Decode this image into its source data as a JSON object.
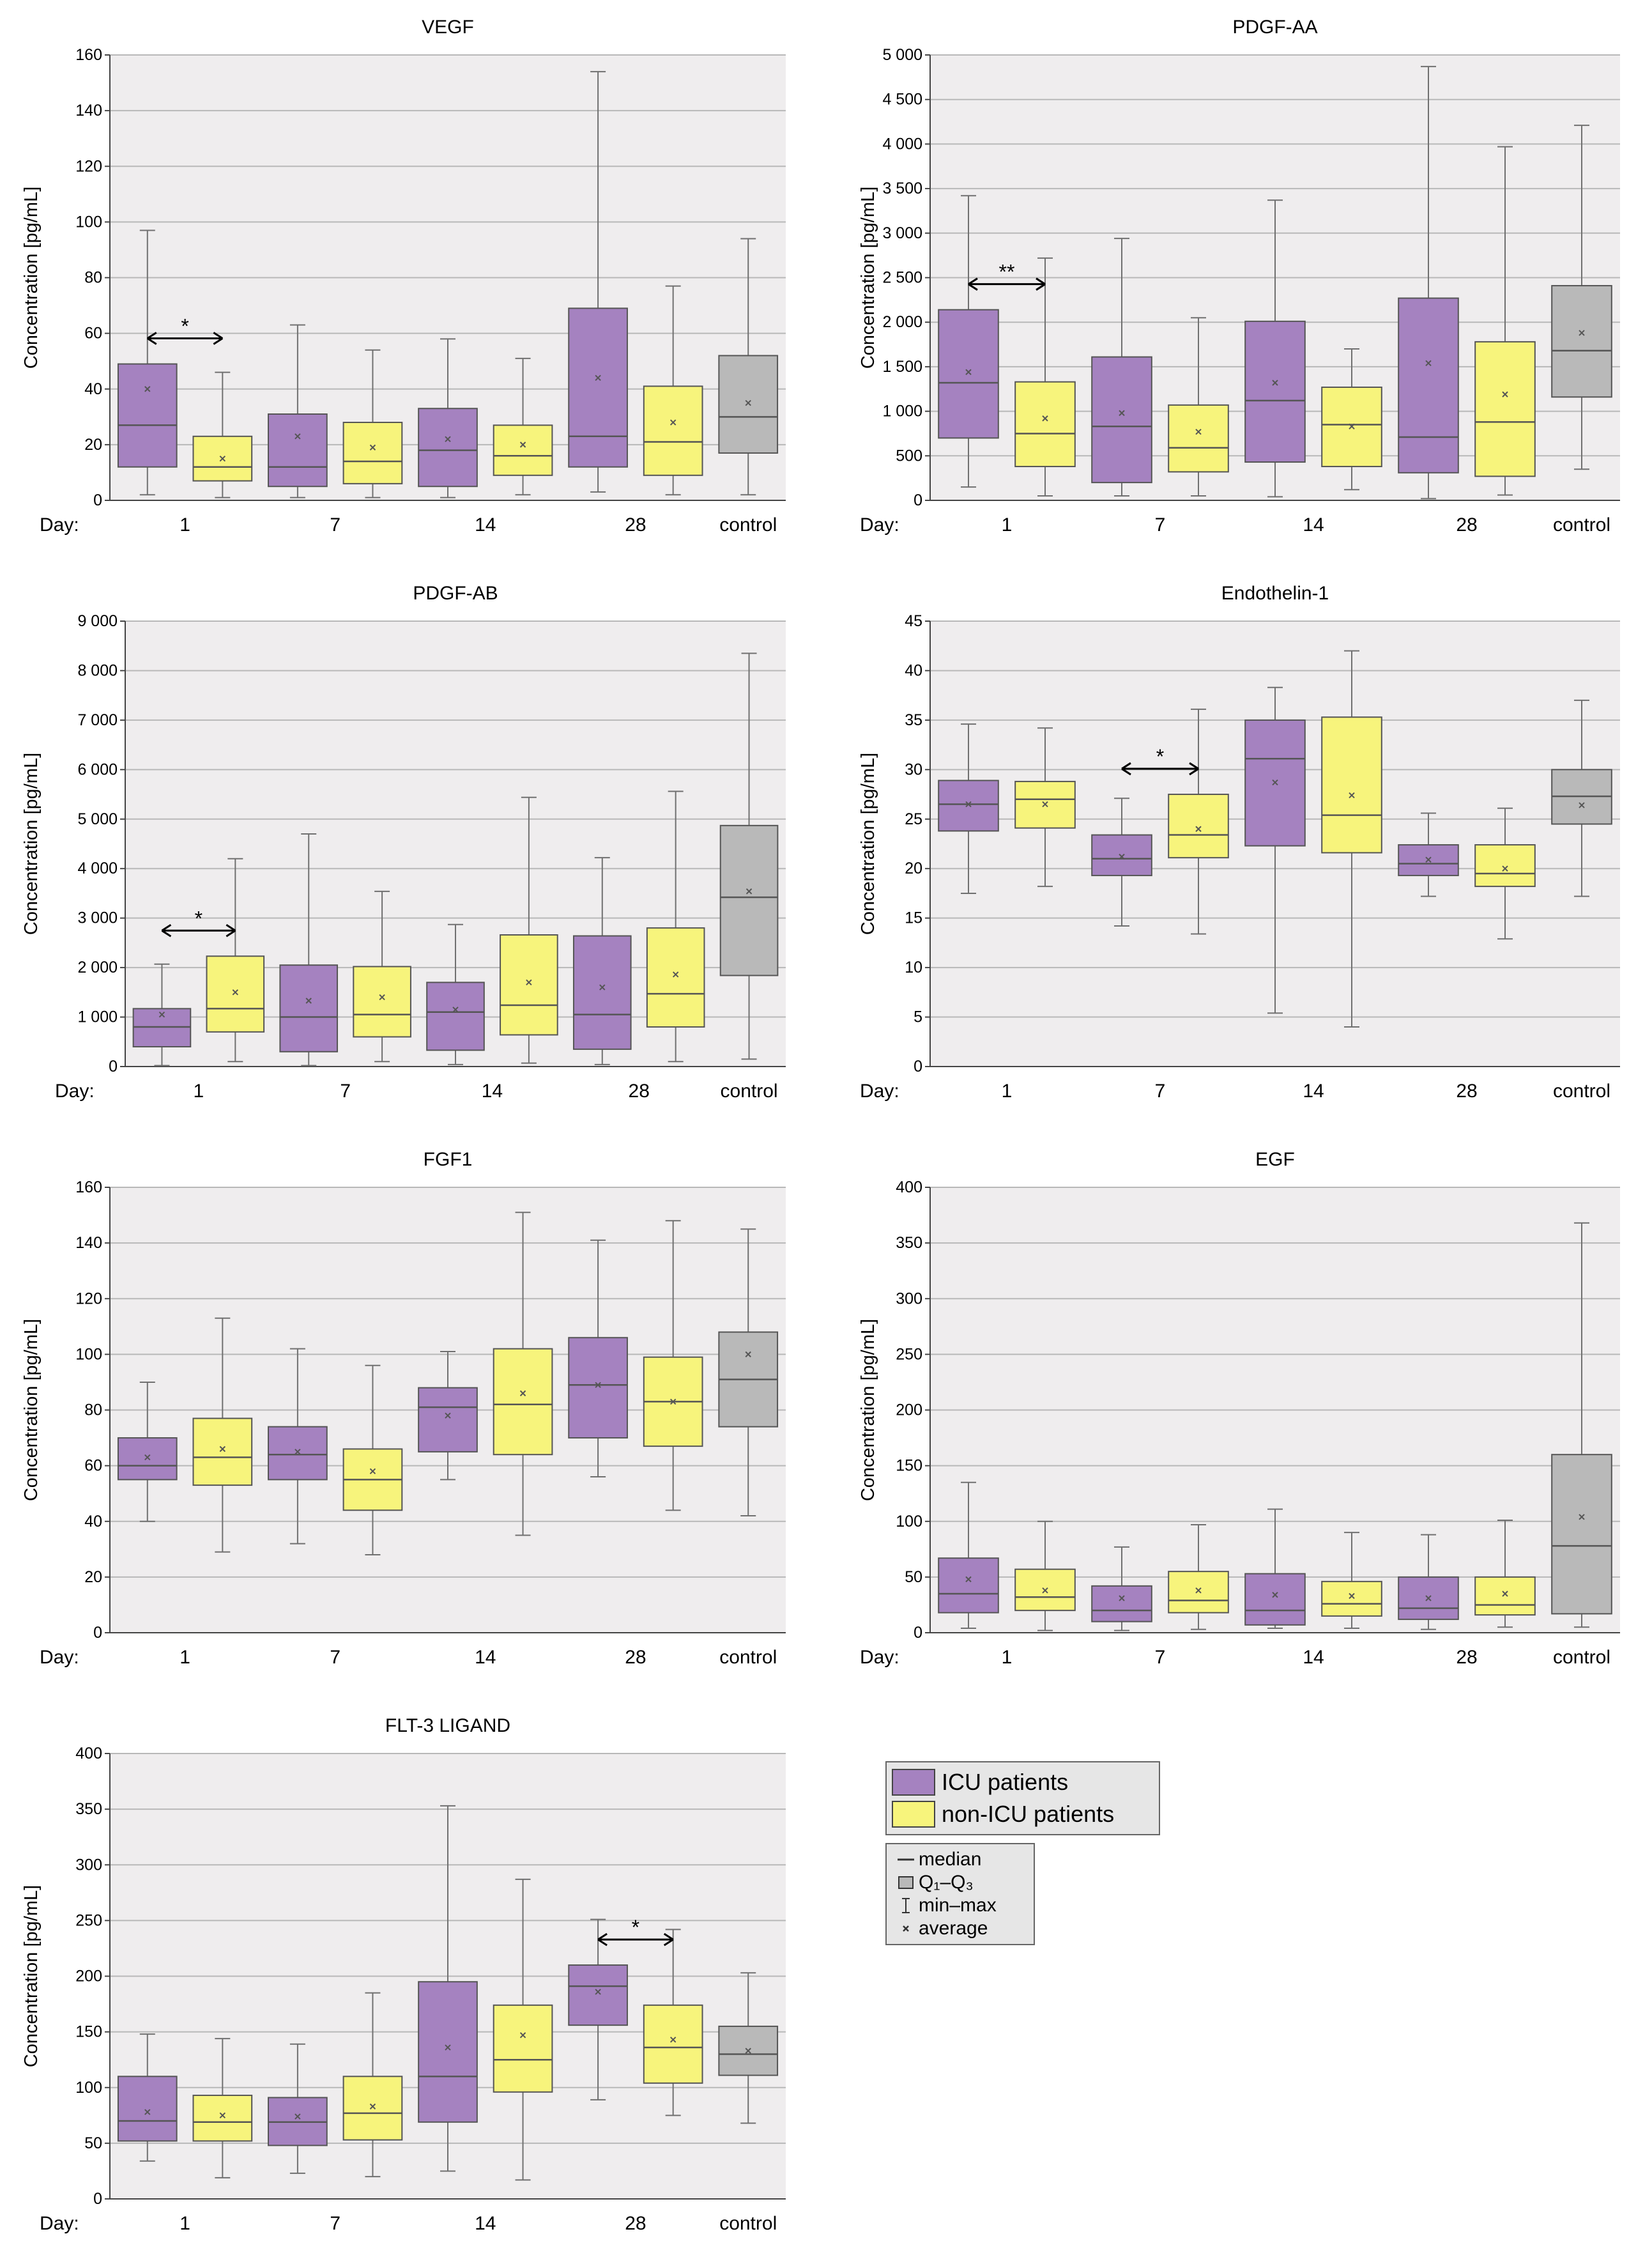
{
  "colors": {
    "icu": "#a582c0",
    "nonicu": "#f7f47c",
    "control": "#b9b9b9",
    "plot_bg": "#efedee",
    "grid": "#b8b8b8",
    "whisker": "#707070"
  },
  "legend": {
    "groups": [
      {
        "label": "ICU patients",
        "color": "#a582c0"
      },
      {
        "label": "non-ICU patients",
        "color": "#f7f47c"
      }
    ],
    "keys": [
      {
        "icon": "median-line-icon",
        "label": "median"
      },
      {
        "icon": "box-icon",
        "label": "Q₁–Q₃"
      },
      {
        "icon": "whisker-icon",
        "label": "min–max"
      },
      {
        "icon": "average-marker-icon",
        "label": "average"
      }
    ]
  },
  "chart_data": [
    {
      "type": "boxplot",
      "title": "VEGF",
      "ylabel": "Concentration [pg/mL]",
      "xlabel": "Day:",
      "ylim": [
        0,
        160
      ],
      "yticks": [
        0,
        20,
        40,
        60,
        80,
        100,
        120,
        140,
        160
      ],
      "day_labels": [
        "1",
        "7",
        "14",
        "28",
        "control"
      ],
      "boxes": [
        {
          "group": "ICU",
          "day": "1",
          "min": 2,
          "q1": 12,
          "median": 27,
          "q3": 49,
          "max": 97,
          "mean": 40
        },
        {
          "group": "non-ICU",
          "day": "1",
          "min": 1,
          "q1": 7,
          "median": 12,
          "q3": 23,
          "max": 46,
          "mean": 15
        },
        {
          "group": "ICU",
          "day": "7",
          "min": 1,
          "q1": 5,
          "median": 12,
          "q3": 31,
          "max": 63,
          "mean": 23
        },
        {
          "group": "non-ICU",
          "day": "7",
          "min": 1,
          "q1": 6,
          "median": 14,
          "q3": 28,
          "max": 54,
          "mean": 19
        },
        {
          "group": "ICU",
          "day": "14",
          "min": 1,
          "q1": 5,
          "median": 18,
          "q3": 33,
          "max": 58,
          "mean": 22
        },
        {
          "group": "non-ICU",
          "day": "14",
          "min": 2,
          "q1": 9,
          "median": 16,
          "q3": 27,
          "max": 51,
          "mean": 20
        },
        {
          "group": "ICU",
          "day": "28",
          "min": 3,
          "q1": 12,
          "median": 23,
          "q3": 69,
          "max": 154,
          "mean": 44
        },
        {
          "group": "non-ICU",
          "day": "28",
          "min": 2,
          "q1": 9,
          "median": 21,
          "q3": 41,
          "max": 77,
          "mean": 28
        },
        {
          "group": "control",
          "day": "control",
          "min": 2,
          "q1": 17,
          "median": 30,
          "q3": 52,
          "max": 94,
          "mean": 35
        }
      ],
      "significance": [
        {
          "between": [
            "ICU 1",
            "non-ICU 1"
          ],
          "label": "*"
        }
      ]
    },
    {
      "type": "boxplot",
      "title": "PDGF-AA",
      "ylabel": "Concentration [pg/mL]",
      "xlabel": "Day:",
      "ylim": [
        0,
        5000
      ],
      "yticks": [
        0,
        500,
        1000,
        1500,
        2000,
        2500,
        3000,
        3500,
        4000,
        4500,
        5000
      ],
      "ytick_labels": [
        "0",
        "500",
        "1 000",
        "1 500",
        "2 000",
        "2 500",
        "3 000",
        "3 500",
        "4 000",
        "4 500",
        "5 000"
      ],
      "day_labels": [
        "1",
        "7",
        "14",
        "28",
        "control"
      ],
      "boxes": [
        {
          "group": "ICU",
          "day": "1",
          "min": 150,
          "q1": 700,
          "median": 1320,
          "q3": 2140,
          "max": 3420,
          "mean": 1440
        },
        {
          "group": "non-ICU",
          "day": "1",
          "min": 50,
          "q1": 380,
          "median": 750,
          "q3": 1330,
          "max": 2720,
          "mean": 920
        },
        {
          "group": "ICU",
          "day": "7",
          "min": 50,
          "q1": 200,
          "median": 830,
          "q3": 1610,
          "max": 2940,
          "mean": 980
        },
        {
          "group": "non-ICU",
          "day": "7",
          "min": 50,
          "q1": 320,
          "median": 590,
          "q3": 1070,
          "max": 2050,
          "mean": 770
        },
        {
          "group": "ICU",
          "day": "14",
          "min": 40,
          "q1": 430,
          "median": 1120,
          "q3": 2010,
          "max": 3370,
          "mean": 1320
        },
        {
          "group": "non-ICU",
          "day": "14",
          "min": 120,
          "q1": 380,
          "median": 850,
          "q3": 1270,
          "max": 1700,
          "mean": 830
        },
        {
          "group": "ICU",
          "day": "28",
          "min": 20,
          "q1": 310,
          "median": 710,
          "q3": 2270,
          "max": 4870,
          "mean": 1540
        },
        {
          "group": "non-ICU",
          "day": "28",
          "min": 60,
          "q1": 270,
          "median": 880,
          "q3": 1780,
          "max": 3970,
          "mean": 1190
        },
        {
          "group": "control",
          "day": "control",
          "min": 350,
          "q1": 1160,
          "median": 1680,
          "q3": 2410,
          "max": 4210,
          "mean": 1880
        }
      ],
      "significance": [
        {
          "between": [
            "ICU 1",
            "non-ICU 1"
          ],
          "label": "**"
        }
      ]
    },
    {
      "type": "boxplot",
      "title": "PDGF-AB",
      "ylabel": "Concentration [pg/mL]",
      "xlabel": "Day:",
      "ylim": [
        0,
        9000
      ],
      "yticks": [
        0,
        1000,
        2000,
        3000,
        4000,
        5000,
        6000,
        7000,
        8000,
        9000
      ],
      "ytick_labels": [
        "0",
        "1 000",
        "2 000",
        "3 000",
        "4 000",
        "5 000",
        "6 000",
        "7 000",
        "8 000",
        "9 000"
      ],
      "day_labels": [
        "1",
        "7",
        "14",
        "28",
        "control"
      ],
      "boxes": [
        {
          "group": "ICU",
          "day": "1",
          "min": 20,
          "q1": 400,
          "median": 800,
          "q3": 1170,
          "max": 2070,
          "mean": 1050
        },
        {
          "group": "non-ICU",
          "day": "1",
          "min": 100,
          "q1": 700,
          "median": 1170,
          "q3": 2230,
          "max": 4200,
          "mean": 1500
        },
        {
          "group": "ICU",
          "day": "7",
          "min": 20,
          "q1": 300,
          "median": 1000,
          "q3": 2050,
          "max": 4700,
          "mean": 1330
        },
        {
          "group": "non-ICU",
          "day": "7",
          "min": 100,
          "q1": 600,
          "median": 1050,
          "q3": 2020,
          "max": 3540,
          "mean": 1400
        },
        {
          "group": "ICU",
          "day": "14",
          "min": 40,
          "q1": 330,
          "median": 1100,
          "q3": 1700,
          "max": 2870,
          "mean": 1150
        },
        {
          "group": "non-ICU",
          "day": "14",
          "min": 70,
          "q1": 640,
          "median": 1240,
          "q3": 2660,
          "max": 5440,
          "mean": 1700
        },
        {
          "group": "ICU",
          "day": "28",
          "min": 40,
          "q1": 350,
          "median": 1050,
          "q3": 2640,
          "max": 4220,
          "mean": 1600
        },
        {
          "group": "non-ICU",
          "day": "28",
          "min": 100,
          "q1": 800,
          "median": 1470,
          "q3": 2800,
          "max": 5560,
          "mean": 1860
        },
        {
          "group": "control",
          "day": "control",
          "min": 150,
          "q1": 1840,
          "median": 3420,
          "q3": 4870,
          "max": 8350,
          "mean": 3540
        }
      ],
      "significance": [
        {
          "between": [
            "ICU 1",
            "non-ICU 1"
          ],
          "label": "*"
        }
      ]
    },
    {
      "type": "boxplot",
      "title": "Endothelin-1",
      "ylabel": "Concentration [pg/mL]",
      "xlabel": "Day:",
      "ylim": [
        0,
        45
      ],
      "yticks": [
        0,
        5,
        10,
        15,
        20,
        25,
        30,
        35,
        40,
        45
      ],
      "day_labels": [
        "1",
        "7",
        "14",
        "28",
        "control"
      ],
      "boxes": [
        {
          "group": "ICU",
          "day": "1",
          "min": 17.5,
          "q1": 23.8,
          "median": 26.5,
          "q3": 28.9,
          "max": 34.6,
          "mean": 26.5
        },
        {
          "group": "non-ICU",
          "day": "1",
          "min": 18.2,
          "q1": 24.1,
          "median": 27.0,
          "q3": 28.8,
          "max": 34.2,
          "mean": 26.5
        },
        {
          "group": "ICU",
          "day": "7",
          "min": 14.2,
          "q1": 19.3,
          "median": 21.0,
          "q3": 23.4,
          "max": 27.1,
          "mean": 21.2
        },
        {
          "group": "non-ICU",
          "day": "7",
          "min": 13.4,
          "q1": 21.1,
          "median": 23.4,
          "q3": 27.5,
          "max": 36.1,
          "mean": 24.0
        },
        {
          "group": "ICU",
          "day": "14",
          "min": 5.4,
          "q1": 22.3,
          "median": 31.1,
          "q3": 35.0,
          "max": 38.3,
          "mean": 28.7
        },
        {
          "group": "non-ICU",
          "day": "14",
          "min": 4.0,
          "q1": 21.6,
          "median": 25.4,
          "q3": 35.3,
          "max": 42.0,
          "mean": 27.4
        },
        {
          "group": "ICU",
          "day": "28",
          "min": 17.2,
          "q1": 19.3,
          "median": 20.5,
          "q3": 22.4,
          "max": 25.6,
          "mean": 20.9
        },
        {
          "group": "non-ICU",
          "day": "28",
          "min": 12.9,
          "q1": 18.2,
          "median": 19.5,
          "q3": 22.4,
          "max": 26.1,
          "mean": 20.0
        },
        {
          "group": "control",
          "day": "control",
          "min": 17.2,
          "q1": 24.5,
          "median": 27.3,
          "q3": 30.0,
          "max": 37.0,
          "mean": 26.4
        }
      ],
      "significance": [
        {
          "between": [
            "ICU 7",
            "non-ICU 7"
          ],
          "label": "*"
        }
      ]
    },
    {
      "type": "boxplot",
      "title": "FGF1",
      "ylabel": "Concentration [pg/mL]",
      "xlabel": "Day:",
      "ylim": [
        0,
        160
      ],
      "yticks": [
        0,
        20,
        40,
        60,
        80,
        100,
        120,
        140,
        160
      ],
      "day_labels": [
        "1",
        "7",
        "14",
        "28",
        "control"
      ],
      "boxes": [
        {
          "group": "ICU",
          "day": "1",
          "min": 40,
          "q1": 55,
          "median": 60,
          "q3": 70,
          "max": 90,
          "mean": 63
        },
        {
          "group": "non-ICU",
          "day": "1",
          "min": 29,
          "q1": 53,
          "median": 63,
          "q3": 77,
          "max": 113,
          "mean": 66
        },
        {
          "group": "ICU",
          "day": "7",
          "min": 32,
          "q1": 55,
          "median": 64,
          "q3": 74,
          "max": 102,
          "mean": 65
        },
        {
          "group": "non-ICU",
          "day": "7",
          "min": 28,
          "q1": 44,
          "median": 55,
          "q3": 66,
          "max": 96,
          "mean": 58
        },
        {
          "group": "ICU",
          "day": "14",
          "min": 55,
          "q1": 65,
          "median": 81,
          "q3": 88,
          "max": 101,
          "mean": 78
        },
        {
          "group": "non-ICU",
          "day": "14",
          "min": 35,
          "q1": 64,
          "median": 82,
          "q3": 102,
          "max": 151,
          "mean": 86
        },
        {
          "group": "ICU",
          "day": "28",
          "min": 56,
          "q1": 70,
          "median": 89,
          "q3": 106,
          "max": 141,
          "mean": 89
        },
        {
          "group": "non-ICU",
          "day": "28",
          "min": 44,
          "q1": 67,
          "median": 83,
          "q3": 99,
          "max": 148,
          "mean": 83
        },
        {
          "group": "control",
          "day": "control",
          "min": 42,
          "q1": 74,
          "median": 91,
          "q3": 108,
          "max": 145,
          "mean": 100
        }
      ],
      "significance": []
    },
    {
      "type": "boxplot",
      "title": "EGF",
      "ylabel": "Concentration [pg/mL]",
      "xlabel": "Day:",
      "ylim": [
        0,
        400
      ],
      "yticks": [
        0,
        50,
        100,
        150,
        200,
        250,
        300,
        350,
        400
      ],
      "day_labels": [
        "1",
        "7",
        "14",
        "28",
        "control"
      ],
      "boxes": [
        {
          "group": "ICU",
          "day": "1",
          "min": 4,
          "q1": 18,
          "median": 35,
          "q3": 67,
          "max": 135,
          "mean": 48
        },
        {
          "group": "non-ICU",
          "day": "1",
          "min": 2,
          "q1": 20,
          "median": 32,
          "q3": 57,
          "max": 100,
          "mean": 38
        },
        {
          "group": "ICU",
          "day": "7",
          "min": 2,
          "q1": 10,
          "median": 20,
          "q3": 42,
          "max": 77,
          "mean": 31
        },
        {
          "group": "non-ICU",
          "day": "7",
          "min": 3,
          "q1": 18,
          "median": 29,
          "q3": 55,
          "max": 97,
          "mean": 38
        },
        {
          "group": "ICU",
          "day": "14",
          "min": 4,
          "q1": 7,
          "median": 20,
          "q3": 53,
          "max": 111,
          "mean": 34
        },
        {
          "group": "non-ICU",
          "day": "14",
          "min": 4,
          "q1": 15,
          "median": 26,
          "q3": 46,
          "max": 90,
          "mean": 33
        },
        {
          "group": "ICU",
          "day": "28",
          "min": 3,
          "q1": 12,
          "median": 22,
          "q3": 50,
          "max": 88,
          "mean": 31
        },
        {
          "group": "non-ICU",
          "day": "28",
          "min": 5,
          "q1": 16,
          "median": 25,
          "q3": 50,
          "max": 101,
          "mean": 35
        },
        {
          "group": "control",
          "day": "control",
          "min": 5,
          "q1": 17,
          "median": 78,
          "q3": 160,
          "max": 368,
          "mean": 104
        }
      ],
      "significance": []
    },
    {
      "type": "boxplot",
      "title": "FLT-3 LIGAND",
      "ylabel": "Concentration [pg/mL]",
      "xlabel": "Day:",
      "ylim": [
        0,
        400
      ],
      "yticks": [
        0,
        50,
        100,
        150,
        200,
        250,
        300,
        350,
        400
      ],
      "day_labels": [
        "1",
        "7",
        "14",
        "28",
        "control"
      ],
      "boxes": [
        {
          "group": "ICU",
          "day": "1",
          "min": 34,
          "q1": 52,
          "median": 70,
          "q3": 110,
          "max": 148,
          "mean": 78
        },
        {
          "group": "non-ICU",
          "day": "1",
          "min": 19,
          "q1": 52,
          "median": 69,
          "q3": 93,
          "max": 144,
          "mean": 75
        },
        {
          "group": "ICU",
          "day": "7",
          "min": 23,
          "q1": 48,
          "median": 69,
          "q3": 91,
          "max": 139,
          "mean": 74
        },
        {
          "group": "non-ICU",
          "day": "7",
          "min": 20,
          "q1": 53,
          "median": 77,
          "q3": 110,
          "max": 185,
          "mean": 83
        },
        {
          "group": "ICU",
          "day": "14",
          "min": 25,
          "q1": 69,
          "median": 110,
          "q3": 195,
          "max": 353,
          "mean": 136
        },
        {
          "group": "non-ICU",
          "day": "14",
          "min": 17,
          "q1": 96,
          "median": 125,
          "q3": 174,
          "max": 287,
          "mean": 147
        },
        {
          "group": "ICU",
          "day": "28",
          "min": 89,
          "q1": 156,
          "median": 191,
          "q3": 210,
          "max": 251,
          "mean": 186
        },
        {
          "group": "non-ICU",
          "day": "28",
          "min": 75,
          "q1": 104,
          "median": 136,
          "q3": 174,
          "max": 242,
          "mean": 143
        },
        {
          "group": "control",
          "day": "control",
          "min": 68,
          "q1": 111,
          "median": 130,
          "q3": 155,
          "max": 203,
          "mean": 133
        }
      ],
      "significance": [
        {
          "between": [
            "ICU 28",
            "non-ICU 28"
          ],
          "label": "*"
        }
      ]
    }
  ]
}
